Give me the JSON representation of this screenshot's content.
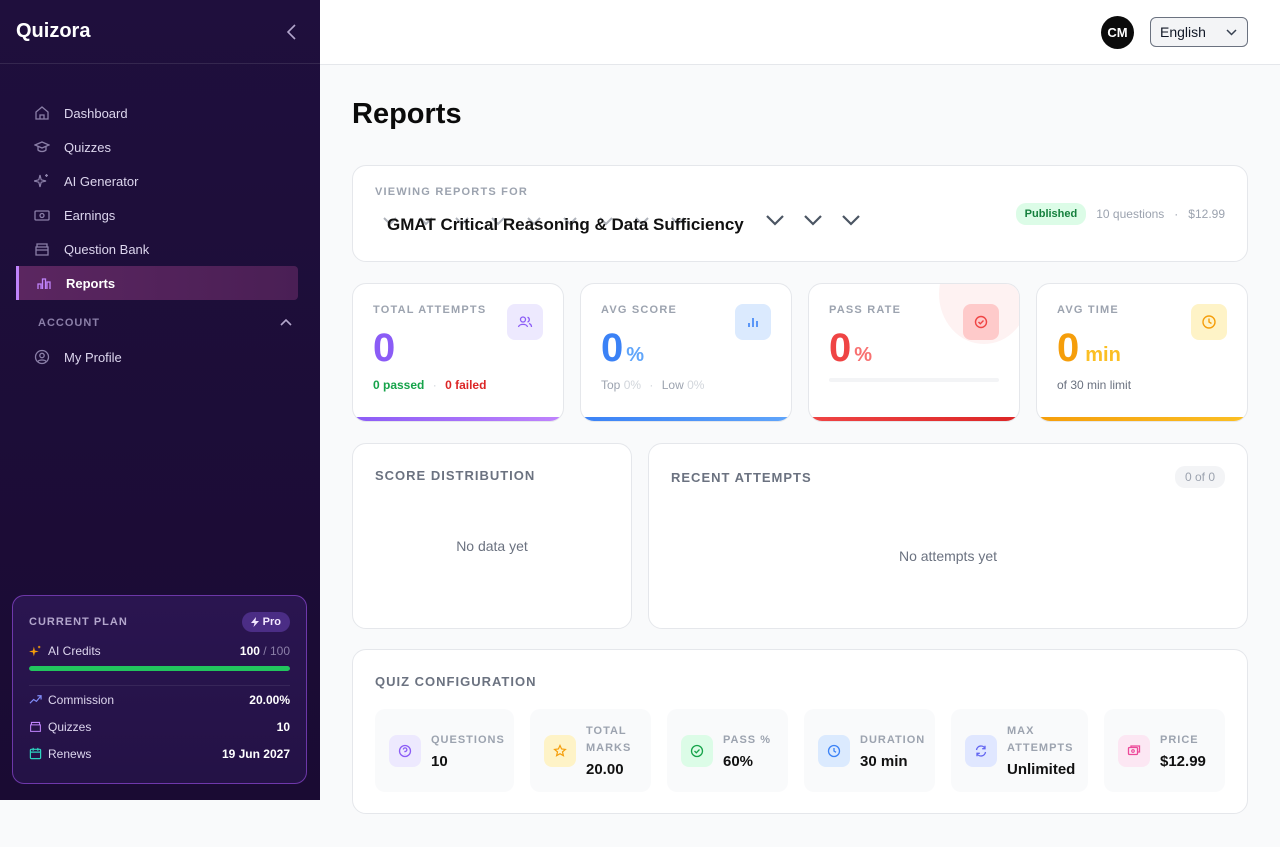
{
  "app": {
    "name": "Quizora"
  },
  "sidebar": {
    "items": [
      {
        "label": "Dashboard",
        "icon": "home-icon"
      },
      {
        "label": "Quizzes",
        "icon": "graduation-cap-icon"
      },
      {
        "label": "AI Generator",
        "icon": "sparkles-icon"
      },
      {
        "label": "Earnings",
        "icon": "banknote-icon"
      },
      {
        "label": "Question Bank",
        "icon": "archive-icon"
      },
      {
        "label": "Reports",
        "icon": "bar-chart-icon",
        "active": true
      }
    ],
    "account_section": "ACCOUNT",
    "account_items": [
      {
        "label": "My Profile",
        "icon": "user-circle-icon"
      }
    ]
  },
  "plan": {
    "label": "CURRENT PLAN",
    "badge": "Pro",
    "credits_label": "AI Credits",
    "credits_used": "100",
    "credits_total": "/ 100",
    "credits_fraction": 1.0,
    "rows": [
      {
        "label": "Commission",
        "value": "20.00%"
      },
      {
        "label": "Quizzes",
        "value": "10"
      },
      {
        "label": "Renews",
        "value": "19 Jun 2027"
      }
    ]
  },
  "topbar": {
    "avatar_initials": "CM",
    "language": "English"
  },
  "page": {
    "title": "Reports"
  },
  "viewing": {
    "label": "VIEWING REPORTS FOR",
    "quiz_name": "GMAT Critical Reasoning & Data Sufficiency",
    "status": "Published",
    "questions": "10 questions",
    "separator": "·",
    "price": "$12.99"
  },
  "stats": {
    "attempts": {
      "label": "TOTAL ATTEMPTS",
      "value": "0",
      "passed": "0 passed",
      "dot": "·",
      "failed": "0 failed"
    },
    "avg_score": {
      "label": "AVG SCORE",
      "value": "0",
      "unit": "%",
      "top_label": "Top",
      "top": "0%",
      "dot": "·",
      "low_label": "Low",
      "low": "0%"
    },
    "pass_rate": {
      "label": "PASS RATE",
      "value": "0",
      "unit": "%",
      "fraction": 0
    },
    "avg_time": {
      "label": "AVG TIME",
      "value": "0",
      "unit": "min",
      "sub": "of 30 min limit"
    }
  },
  "distribution": {
    "title": "SCORE DISTRIBUTION",
    "empty": "No data yet"
  },
  "recent": {
    "title": "RECENT ATTEMPTS",
    "count": "0 of 0",
    "empty": "No attempts yet"
  },
  "config": {
    "title": "QUIZ CONFIGURATION",
    "items": [
      {
        "label1": "QUESTIONS",
        "label2": "",
        "value": "10"
      },
      {
        "label1": "TOTAL",
        "label2": "MARKS",
        "value": "20.00"
      },
      {
        "label1": "PASS %",
        "label2": "",
        "value": "60%"
      },
      {
        "label1": "DURATION",
        "label2": "",
        "value": "30 min"
      },
      {
        "label1": "MAX",
        "label2": "ATTEMPTS",
        "value": "Unlimited"
      },
      {
        "label1": "PRICE",
        "label2": "",
        "value": "$12.99"
      }
    ]
  },
  "colors": {
    "purple": "#8b5cf6",
    "blue": "#3b82f6",
    "red": "#ef4444",
    "amber": "#f59e0b",
    "green": "#22c55e"
  }
}
